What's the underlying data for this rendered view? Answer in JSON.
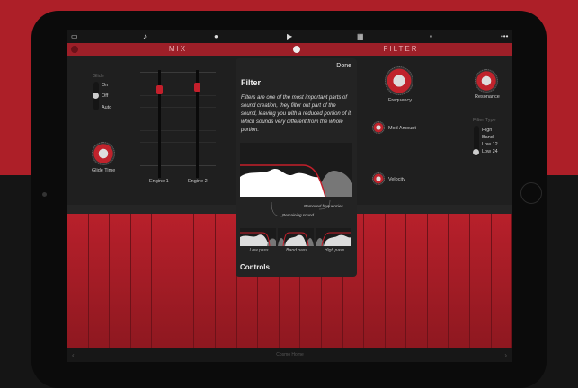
{
  "toolbar": {
    "icons": [
      "inbox-icon",
      "note-icon",
      "record-icon",
      "play-icon",
      "grid-icon",
      "trash-icon",
      "more-icon"
    ],
    "more": "•••",
    "play": "▶"
  },
  "mix": {
    "title": "MIX",
    "glide_label": "Glide",
    "glide_options": [
      "On",
      "Off",
      "Auto"
    ],
    "glide_selected": "Off",
    "glide_time": "Glide Time",
    "engines": [
      {
        "label": "Engine 1",
        "level": 0.85
      },
      {
        "label": "Engine 2",
        "level": 0.88
      }
    ]
  },
  "filter": {
    "title": "FILTER",
    "frequency": "Frequency",
    "resonance": "Resonance",
    "mod_amount": "Mod Amount",
    "velocity": "Velocity",
    "filter_type_label": "Filter Type",
    "filter_types": [
      "High",
      "Band",
      "Low 12",
      "Low 24"
    ],
    "filter_type_selected": "Low 24"
  },
  "popover": {
    "done": "Done",
    "title": "Filter",
    "body": "Filters are one of the most important parts of sound creation, they filter out part of the sound, leaving you with a reduced portion of it, which sounds very different from the whole portion.",
    "remaining": "Remaining sound",
    "removed": "Removed frequencies",
    "types": [
      "Low pass",
      "Band pass",
      "High pass"
    ],
    "controls": "Controls"
  },
  "bottom": {
    "title": "Cosmo Home"
  },
  "colors": {
    "accent": "#ad1f28",
    "panel": "#1f1f1f"
  }
}
